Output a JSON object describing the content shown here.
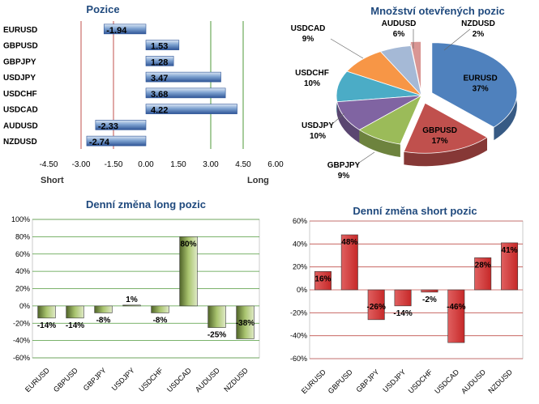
{
  "chart_data": [
    {
      "type": "bar",
      "orientation": "horizontal",
      "title": "Pozice",
      "categories": [
        "EURUSD",
        "GBPUSD",
        "GBPJPY",
        "USDJPY",
        "USDCHF",
        "USDCAD",
        "AUDUSD",
        "NZDUSD"
      ],
      "values": [
        -1.94,
        1.53,
        1.28,
        3.47,
        3.68,
        4.22,
        -2.33,
        -2.74
      ],
      "value_labels": [
        "-1.94",
        "1.53",
        "1.28",
        "3.47",
        "3.68",
        "4.22",
        "-2.33",
        "-2.74"
      ],
      "xlim": [
        -4.5,
        6.0
      ],
      "x_ticks": [
        "-4.50",
        "-3.00",
        "-1.50",
        "0.00",
        "1.50",
        "3.00",
        "4.50",
        "6.00"
      ],
      "annotations": {
        "left": "Short",
        "right": "Long"
      },
      "reference_lines": [
        {
          "x": -3.0,
          "color": "#c0504d"
        },
        {
          "x": -1.5,
          "color": "#c0504d"
        },
        {
          "x": 3.0,
          "color": "#4f9a3a"
        },
        {
          "x": 4.5,
          "color": "#4f9a3a"
        }
      ],
      "bar_color": "#4f81bd"
    },
    {
      "type": "pie",
      "title": "Množství otevřených pozic",
      "slices": [
        {
          "label": "EURUSD",
          "percent_label": "37%",
          "value": 37,
          "color": "#4f81bd"
        },
        {
          "label": "GBPUSD",
          "percent_label": "17%",
          "value": 17,
          "color": "#c0504d"
        },
        {
          "label": "GBPJPY",
          "percent_label": "9%",
          "value": 9,
          "color": "#9bbb59"
        },
        {
          "label": "USDJPY",
          "percent_label": "10%",
          "value": 10,
          "color": "#8064a2"
        },
        {
          "label": "USDCHF",
          "percent_label": "10%",
          "value": 10,
          "color": "#4bacc6"
        },
        {
          "label": "USDCAD",
          "percent_label": "9%",
          "value": 9,
          "color": "#f79646"
        },
        {
          "label": "AUDUSD",
          "percent_label": "6%",
          "value": 6,
          "color": "#a5b9d6"
        },
        {
          "label": "NZDUSD",
          "percent_label": "2%",
          "value": 2,
          "color": "#d99694"
        }
      ]
    },
    {
      "type": "bar",
      "title": "Denní změna long pozic",
      "categories": [
        "EURUSD",
        "GBPUSD",
        "GBPJPY",
        "USDJPY",
        "USDCHF",
        "USDCAD",
        "AUDUSD",
        "NZDUSD"
      ],
      "values": [
        -14,
        -14,
        -8,
        1,
        -8,
        80,
        -25,
        -38
      ],
      "value_labels": [
        "-14%",
        "-14%",
        "-8%",
        "1%",
        "-8%",
        "80%",
        "-25%",
        "-38%"
      ],
      "ylim": [
        -60,
        100
      ],
      "y_ticks": [
        "-60%",
        "-40%",
        "-20%",
        "0%",
        "20%",
        "40%",
        "60%",
        "80%",
        "100%"
      ],
      "bar_color": "#77933c",
      "grid_color": "#4f9a3a"
    },
    {
      "type": "bar",
      "title": "Denní změna short pozic",
      "categories": [
        "EURUSD",
        "GBPUSD",
        "GBPJPY",
        "USDJPY",
        "USDCHF",
        "USDCAD",
        "AUDUSD",
        "NZDUSD"
      ],
      "values": [
        16,
        48,
        -26,
        -14,
        -2,
        -46,
        28,
        41
      ],
      "value_labels": [
        "16%",
        "48%",
        "-26%",
        "-14%",
        "-2%",
        "-46%",
        "28%",
        "41%"
      ],
      "ylim": [
        -60,
        60
      ],
      "y_ticks": [
        "-60%",
        "-40%",
        "-20%",
        "0%",
        "20%",
        "40%",
        "60%"
      ],
      "bar_color": "#c0504d",
      "grid_color": "#c0504d"
    }
  ]
}
